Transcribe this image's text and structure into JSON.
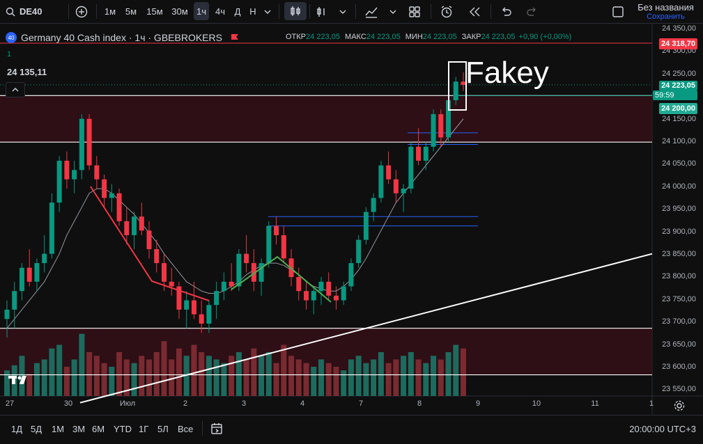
{
  "toolbar": {
    "symbol": "DE40",
    "intervals": [
      "1м",
      "5м",
      "15м",
      "30м",
      "1ч",
      "4ч",
      "Д",
      "Н"
    ],
    "active_interval": "1ч",
    "layout_name": "Без названия",
    "save_label": "Сохранить"
  },
  "legend": {
    "title": "Germany 40 Cash index · 1ч · GBEBROKERS",
    "open_label": "ОТКР",
    "open": "24 223,05",
    "high_label": "МАКС",
    "high": "24 223,05",
    "low_label": "МИН",
    "low": "24 223,05",
    "close_label": "ЗАКР",
    "close": "24 223,05",
    "change": "+0,90 (+0,00%)",
    "pane_index": "1",
    "crosshair_value": "24 135,11"
  },
  "annotation": {
    "text": "Fakey"
  },
  "price_axis": {
    "ticks": [
      "24 350,00",
      "24 300,00",
      "24 250,00",
      "24 200,00",
      "24 150,00",
      "24 100,00",
      "24 050,00",
      "24 000,00",
      "23 950,00",
      "23 900,00",
      "23 850,00",
      "23 800,00",
      "23 750,00",
      "23 700,00",
      "23 650,00",
      "23 600,00",
      "23 550,00"
    ],
    "red_label": "24 318,70",
    "last_price": "24 223,05",
    "countdown": "59:59",
    "green_label": "24 200,00"
  },
  "time_axis": {
    "labels": [
      "27",
      "30",
      "Июл",
      "2",
      "3",
      "4",
      "7",
      "8",
      "9",
      "10",
      "11",
      "1"
    ]
  },
  "bottom": {
    "ranges": [
      "1Д",
      "5Д",
      "1М",
      "3М",
      "6М",
      "YTD",
      "1Г",
      "5Л",
      "Все"
    ],
    "clock": "20:00:00 UTC+3"
  },
  "colors": {
    "up": "#089981",
    "down": "#f23645",
    "volume_up": "#1d6b5e",
    "volume_down": "#7a2a31",
    "zone": "#3b1018",
    "level": "#2962ff",
    "accent": "#f23645"
  },
  "chart_data": {
    "type": "candlestick",
    "ylim": [
      23550,
      24350
    ],
    "candles": [
      [
        23720,
        23760,
        23680,
        23740
      ],
      [
        23740,
        23800,
        23700,
        23780
      ],
      [
        23780,
        23840,
        23760,
        23830
      ],
      [
        23830,
        23870,
        23790,
        23800
      ],
      [
        23800,
        23850,
        23780,
        23840
      ],
      [
        23840,
        23900,
        23820,
        23860
      ],
      [
        23860,
        23990,
        23850,
        23970
      ],
      [
        23970,
        24070,
        23950,
        24060
      ],
      [
        24060,
        24080,
        24000,
        24020
      ],
      [
        24020,
        24060,
        23990,
        24040
      ],
      [
        24040,
        24160,
        24020,
        24150
      ],
      [
        24150,
        24160,
        24040,
        24050
      ],
      [
        24050,
        24070,
        24000,
        24020
      ],
      [
        24020,
        24030,
        23960,
        23980
      ],
      [
        23980,
        24010,
        23950,
        23990
      ],
      [
        23990,
        24000,
        23920,
        23930
      ],
      [
        23930,
        23960,
        23880,
        23900
      ],
      [
        23900,
        23950,
        23870,
        23940
      ],
      [
        23940,
        23970,
        23900,
        23910
      ],
      [
        23910,
        23930,
        23850,
        23870
      ],
      [
        23870,
        23890,
        23820,
        23840
      ],
      [
        23840,
        23860,
        23780,
        23800
      ],
      [
        23800,
        23830,
        23770,
        23790
      ],
      [
        23790,
        23800,
        23720,
        23740
      ],
      [
        23740,
        23780,
        23700,
        23760
      ],
      [
        23760,
        23800,
        23720,
        23730
      ],
      [
        23730,
        23760,
        23690,
        23710
      ],
      [
        23710,
        23760,
        23690,
        23750
      ],
      [
        23750,
        23800,
        23720,
        23780
      ],
      [
        23780,
        23820,
        23760,
        23800
      ],
      [
        23800,
        23840,
        23780,
        23790
      ],
      [
        23790,
        23870,
        23780,
        23860
      ],
      [
        23860,
        23900,
        23820,
        23840
      ],
      [
        23840,
        23870,
        23780,
        23800
      ],
      [
        23800,
        23850,
        23770,
        23840
      ],
      [
        23840,
        23930,
        23830,
        23920
      ],
      [
        23920,
        23940,
        23880,
        23900
      ],
      [
        23900,
        23920,
        23840,
        23850
      ],
      [
        23850,
        23870,
        23790,
        23810
      ],
      [
        23810,
        23830,
        23760,
        23780
      ],
      [
        23780,
        23800,
        23740,
        23760
      ],
      [
        23760,
        23790,
        23730,
        23780
      ],
      [
        23780,
        23810,
        23750,
        23800
      ],
      [
        23800,
        23820,
        23760,
        23770
      ],
      [
        23770,
        23790,
        23740,
        23760
      ],
      [
        23760,
        23800,
        23750,
        23790
      ],
      [
        23790,
        23850,
        23780,
        23840
      ],
      [
        23840,
        23900,
        23830,
        23890
      ],
      [
        23890,
        23960,
        23880,
        23950
      ],
      [
        23950,
        23990,
        23930,
        23980
      ],
      [
        23980,
        24060,
        23970,
        24050
      ],
      [
        24050,
        24080,
        24010,
        24020
      ],
      [
        24020,
        24040,
        23970,
        23990
      ],
      [
        23990,
        24010,
        23950,
        24000
      ],
      [
        24000,
        24100,
        23990,
        24090
      ],
      [
        24090,
        24130,
        24050,
        24060
      ],
      [
        24060,
        24100,
        24040,
        24090
      ],
      [
        24090,
        24170,
        24080,
        24160
      ],
      [
        24160,
        24170,
        24090,
        24110
      ],
      [
        24110,
        24200,
        24100,
        24190
      ],
      [
        24190,
        24240,
        24180,
        24230
      ],
      [
        24230,
        24250,
        24210,
        24223
      ]
    ],
    "volumes": [
      0.35,
      0.42,
      0.55,
      0.3,
      0.45,
      0.5,
      0.65,
      0.7,
      0.4,
      0.5,
      0.85,
      0.6,
      0.55,
      0.45,
      0.4,
      0.6,
      0.5,
      0.45,
      0.55,
      0.5,
      0.6,
      0.75,
      0.5,
      0.65,
      0.55,
      0.7,
      0.6,
      0.55,
      0.5,
      0.45,
      0.55,
      0.6,
      0.5,
      0.65,
      0.55,
      0.6,
      0.45,
      0.7,
      0.55,
      0.5,
      0.45,
      0.4,
      0.5,
      0.45,
      0.4,
      0.35,
      0.5,
      0.55,
      0.45,
      0.5,
      0.6,
      0.45,
      0.5,
      0.55,
      0.6,
      0.5,
      0.45,
      0.55,
      0.5,
      0.6,
      0.7,
      0.65
    ],
    "horizontal_levels": [
      24200,
      24100,
      23700,
      23600
    ],
    "blue_levels": [
      24120,
      24095,
      23940,
      23920
    ],
    "red_zones": [
      [
        24100,
        24200
      ],
      [
        23600,
        23700
      ]
    ],
    "trendline": [
      [
        0,
        23540
      ],
      [
        61,
        23860
      ]
    ],
    "ma": [
      23700,
      23720,
      23740,
      23760,
      23780,
      23800,
      23830,
      23860,
      23900,
      23930,
      23960,
      23990,
      24000,
      24000,
      23990,
      23975,
      23960,
      23945,
      23925,
      23905,
      23885,
      23860,
      23840,
      23820,
      23800,
      23790,
      23780,
      23775,
      23775,
      23780,
      23790,
      23800,
      23815,
      23825,
      23835,
      23840,
      23840,
      23835,
      23825,
      23815,
      23800,
      23790,
      23785,
      23780,
      23780,
      23790,
      23805,
      23825,
      23850,
      23880,
      23910,
      23940,
      23970,
      23990,
      24010,
      24030,
      24050,
      24070,
      24090,
      24110,
      24130,
      24150
    ]
  }
}
